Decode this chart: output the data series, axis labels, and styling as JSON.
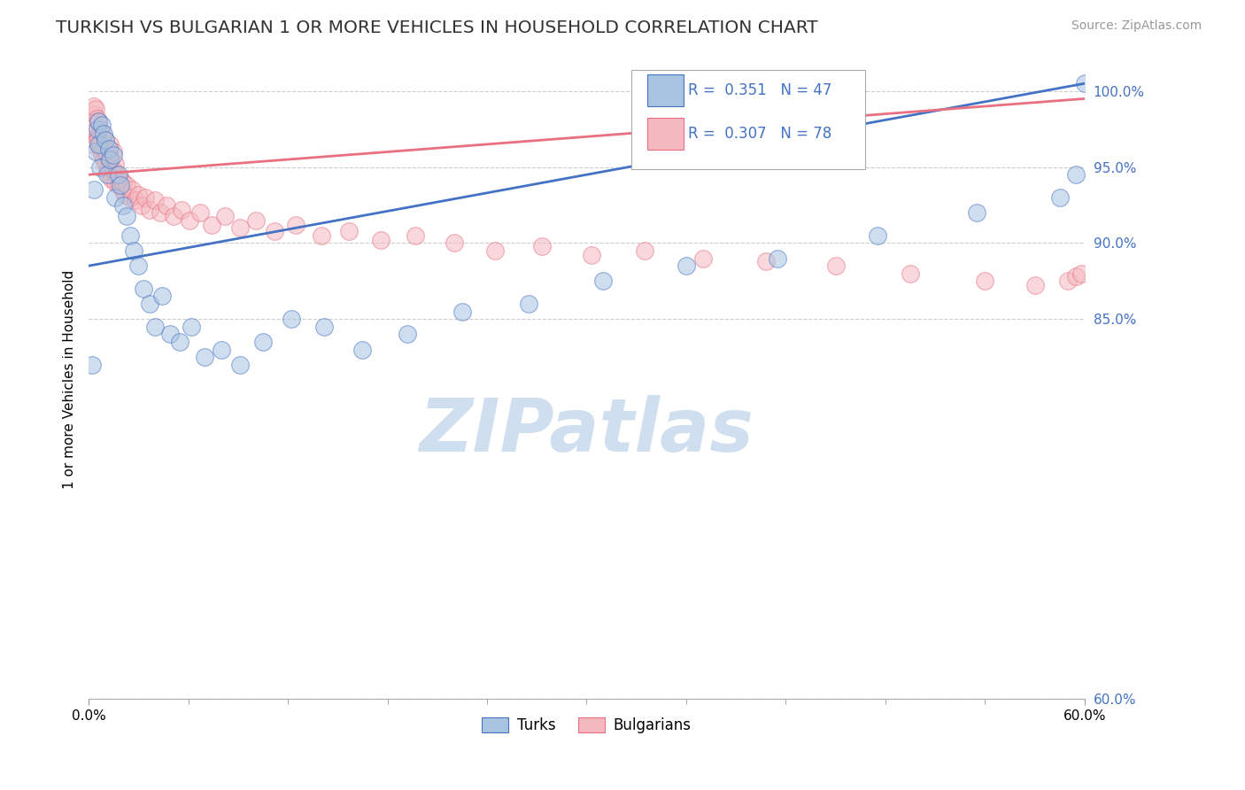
{
  "title": "TURKISH VS BULGARIAN 1 OR MORE VEHICLES IN HOUSEHOLD CORRELATION CHART",
  "source": "Source: ZipAtlas.com",
  "ylabel": "1 or more Vehicles in Household",
  "x_min": 0.0,
  "x_max": 0.6,
  "y_min": 60.0,
  "y_max": 102.0,
  "x_tick_left": 0.0,
  "x_tick_right": 0.6,
  "x_tick_left_label": "0.0%",
  "x_tick_right_label": "60.0%",
  "y_ticks": [
    60.0,
    85.0,
    90.0,
    95.0,
    100.0
  ],
  "y_tick_labels": [
    "60.0%",
    "85.0%",
    "90.0%",
    "95.0%",
    "100.0%"
  ],
  "grid_color": "#cccccc",
  "background_color": "#ffffff",
  "watermark_text": "ZIPatlas",
  "watermark_color": "#d0dff0",
  "legend_R_blue": "0.351",
  "legend_N_blue": "47",
  "legend_R_pink": "0.307",
  "legend_N_pink": "78",
  "blue_color": "#a8c4e0",
  "blue_line_color": "#4472c4",
  "pink_color": "#f4b8c0",
  "pink_line_color": "#e87080",
  "blue_points_x": [
    0.002,
    0.003,
    0.004,
    0.005,
    0.006,
    0.006,
    0.007,
    0.008,
    0.009,
    0.01,
    0.011,
    0.012,
    0.013,
    0.015,
    0.016,
    0.018,
    0.019,
    0.021,
    0.023,
    0.025,
    0.027,
    0.03,
    0.033,
    0.037,
    0.04,
    0.044,
    0.049,
    0.055,
    0.062,
    0.07,
    0.08,
    0.091,
    0.105,
    0.122,
    0.142,
    0.165,
    0.192,
    0.225,
    0.265,
    0.31,
    0.36,
    0.415,
    0.475,
    0.535,
    0.585,
    0.595,
    0.6
  ],
  "blue_points_y": [
    82.0,
    93.5,
    96.0,
    97.5,
    96.5,
    98.0,
    95.0,
    97.8,
    97.2,
    96.8,
    94.5,
    96.2,
    95.5,
    95.8,
    93.0,
    94.5,
    93.8,
    92.5,
    91.8,
    90.5,
    89.5,
    88.5,
    87.0,
    86.0,
    84.5,
    86.5,
    84.0,
    83.5,
    84.5,
    82.5,
    83.0,
    82.0,
    83.5,
    85.0,
    84.5,
    83.0,
    84.0,
    85.5,
    86.0,
    87.5,
    88.5,
    89.0,
    90.5,
    92.0,
    93.0,
    94.5,
    100.5
  ],
  "pink_points_x": [
    0.002,
    0.003,
    0.003,
    0.004,
    0.004,
    0.005,
    0.005,
    0.006,
    0.006,
    0.007,
    0.007,
    0.008,
    0.008,
    0.009,
    0.009,
    0.01,
    0.01,
    0.011,
    0.011,
    0.012,
    0.012,
    0.013,
    0.014,
    0.014,
    0.015,
    0.016,
    0.016,
    0.017,
    0.018,
    0.019,
    0.02,
    0.021,
    0.022,
    0.023,
    0.025,
    0.026,
    0.028,
    0.03,
    0.032,
    0.034,
    0.037,
    0.04,
    0.043,
    0.047,
    0.051,
    0.056,
    0.061,
    0.067,
    0.074,
    0.082,
    0.091,
    0.101,
    0.112,
    0.125,
    0.14,
    0.157,
    0.176,
    0.197,
    0.22,
    0.245,
    0.273,
    0.303,
    0.335,
    0.37,
    0.408,
    0.45,
    0.495,
    0.54,
    0.57,
    0.59,
    0.595,
    0.598,
    0.005,
    0.007,
    0.009,
    0.011,
    0.013,
    0.015
  ],
  "pink_points_y": [
    96.5,
    98.5,
    99.0,
    98.8,
    97.5,
    98.2,
    97.0,
    98.0,
    96.8,
    97.5,
    96.2,
    97.2,
    95.8,
    96.5,
    95.5,
    96.8,
    95.2,
    96.0,
    94.8,
    95.5,
    94.5,
    95.8,
    94.2,
    95.0,
    94.8,
    95.2,
    94.0,
    94.5,
    93.8,
    94.2,
    93.5,
    94.0,
    93.2,
    93.8,
    93.0,
    93.5,
    92.8,
    93.2,
    92.5,
    93.0,
    92.2,
    92.8,
    92.0,
    92.5,
    91.8,
    92.2,
    91.5,
    92.0,
    91.2,
    91.8,
    91.0,
    91.5,
    90.8,
    91.2,
    90.5,
    90.8,
    90.2,
    90.5,
    90.0,
    89.5,
    89.8,
    89.2,
    89.5,
    89.0,
    88.8,
    88.5,
    88.0,
    87.5,
    87.2,
    87.5,
    87.8,
    88.0,
    96.8,
    96.5,
    96.2,
    95.8,
    96.5,
    96.0
  ],
  "blue_trend_x0": 0.0,
  "blue_trend_x1": 0.6,
  "blue_trend_y0": 88.5,
  "blue_trend_y1": 100.5,
  "pink_trend_x0": 0.0,
  "pink_trend_x1": 0.6,
  "pink_trend_y0": 94.5,
  "pink_trend_y1": 99.5
}
